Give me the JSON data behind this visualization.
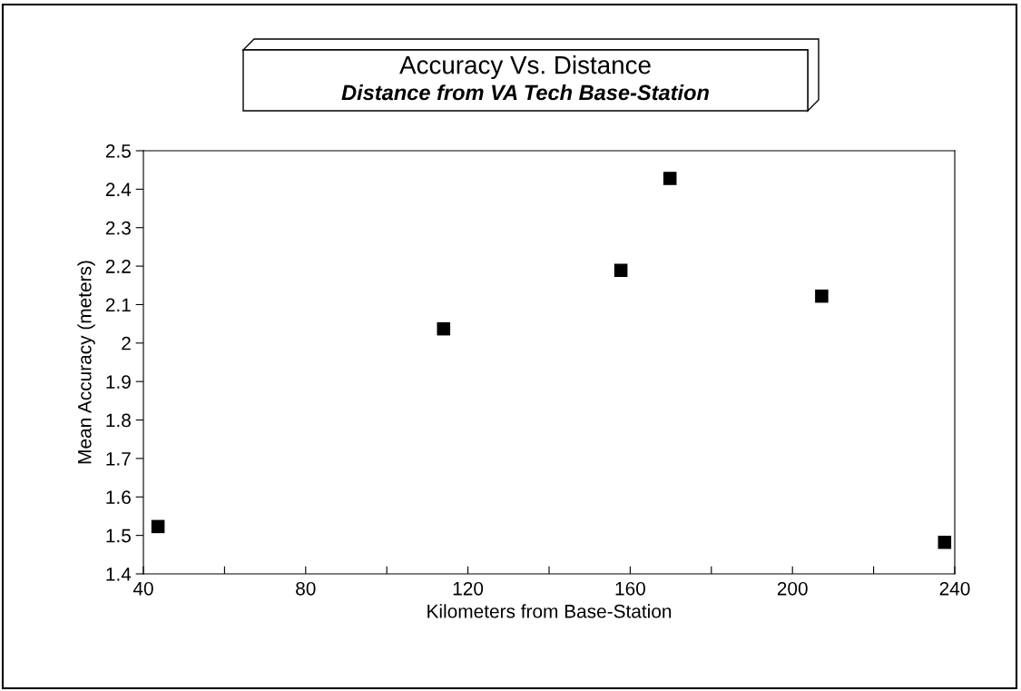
{
  "chart_data": {
    "type": "scatter",
    "title": "Accuracy Vs. Distance",
    "subtitle": "Distance from VA Tech Base-Station",
    "xlabel": "Kilometers from Base-Station",
    "ylabel": "Mean Accuracy (meters)",
    "x": [
      43.6,
      114.0,
      157.7,
      169.8,
      207.2,
      237.5
    ],
    "values": [
      1.523,
      2.037,
      2.189,
      2.428,
      2.122,
      1.482
    ],
    "color": "#000000",
    "marker": "square",
    "xlim": [
      40,
      240
    ],
    "xticks": [
      40,
      {
        "value": 60,
        "label": null
      },
      80,
      {
        "value": 100,
        "label": null
      },
      120,
      {
        "value": 140,
        "label": null
      },
      160,
      {
        "value": 180,
        "label": null
      },
      200,
      {
        "value": 220,
        "label": null
      },
      240
    ],
    "ylim": [
      1.4,
      2.5
    ],
    "yticks": [
      1.4,
      1.5,
      1.6,
      1.7,
      1.8,
      1.9,
      2,
      2.1,
      2.2,
      2.3,
      2.4,
      2.5
    ],
    "grid": false,
    "legend": false
  }
}
